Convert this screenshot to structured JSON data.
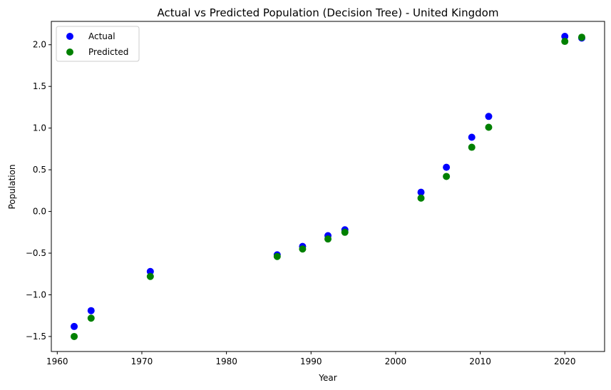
{
  "chart_data": {
    "type": "scatter",
    "title": "Actual vs Predicted Population (Decision Tree) - United Kingdom",
    "xlabel": "Year",
    "ylabel": "Population",
    "xlim": [
      1959.3,
      2024.7
    ],
    "ylim": [
      -1.68,
      2.28
    ],
    "xticks": [
      1960,
      1970,
      1980,
      1990,
      2000,
      2010,
      2020
    ],
    "yticks": [
      -1.5,
      -1.0,
      -0.5,
      0.0,
      0.5,
      1.0,
      1.5,
      2.0
    ],
    "ytick_labels": [
      "−1.5",
      "−1.0",
      "−0.5",
      "0.0",
      "0.5",
      "1.0",
      "1.5",
      "2.0"
    ],
    "grid": false,
    "legend_position": "top-left",
    "series": [
      {
        "name": "Actual",
        "color": "#0000ff",
        "x": [
          1962,
          1964,
          1971,
          1986,
          1989,
          1992,
          1994,
          2003,
          2006,
          2009,
          2011,
          2020,
          2022
        ],
        "y": [
          -1.38,
          -1.19,
          -0.72,
          -0.52,
          -0.42,
          -0.29,
          -0.22,
          0.23,
          0.53,
          0.89,
          1.14,
          2.1,
          2.08
        ]
      },
      {
        "name": "Predicted",
        "color": "#008000",
        "x": [
          1962,
          1964,
          1971,
          1986,
          1989,
          1992,
          1994,
          2003,
          2006,
          2009,
          2011,
          2020,
          2022
        ],
        "y": [
          -1.5,
          -1.28,
          -0.78,
          -0.54,
          -0.45,
          -0.33,
          -0.25,
          0.16,
          0.42,
          0.77,
          1.01,
          2.04,
          2.09
        ]
      }
    ]
  }
}
